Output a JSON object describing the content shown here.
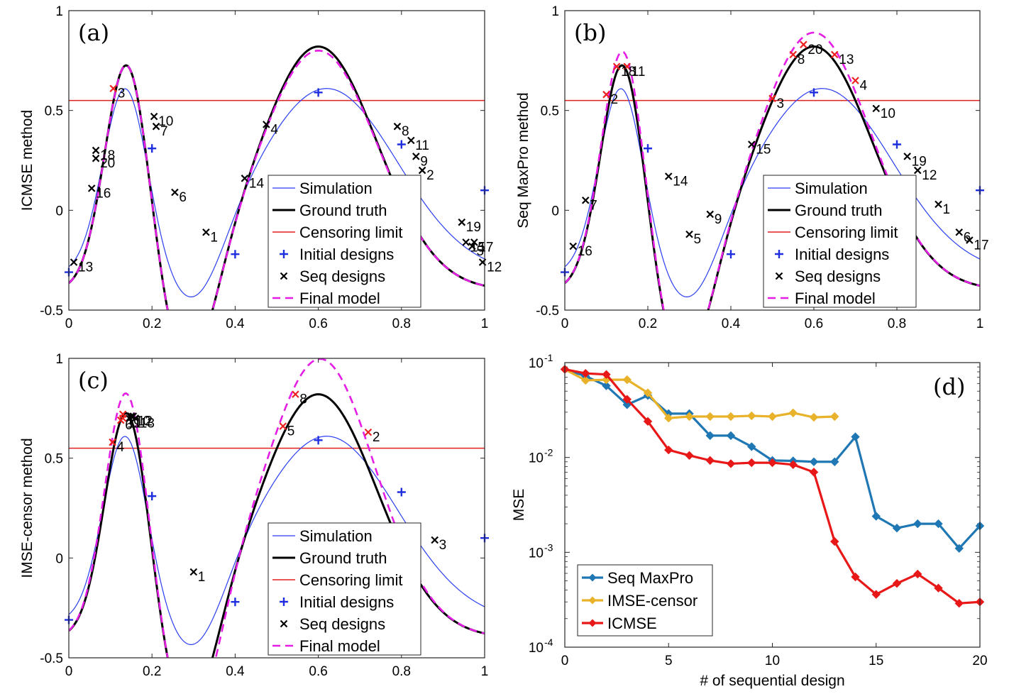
{
  "colors": {
    "simulation": "#2b3ff0",
    "ground_truth": "#000000",
    "censor": "#e01f1f",
    "initial": "#1f2fe0",
    "seq": "#000000",
    "seq_censored": "#ee2020",
    "final_model": "#e51de5",
    "seq_maxpro": "#1f77b4",
    "imse_censor": "#e8b22a",
    "icmse": "#e81818"
  },
  "chart_data": [
    {
      "type": "line",
      "panel_label": "(a)",
      "ylabel": "ICMSE method",
      "xlim": [
        0,
        1
      ],
      "ylim": [
        -0.5,
        1
      ],
      "xticks": [
        "0",
        "0.2",
        "0.4",
        "0.6",
        "0.8",
        "1"
      ],
      "yticks": [
        "-0.5",
        "0",
        "0.5",
        "1"
      ],
      "censoring_limit": 0.55,
      "legend": {
        "position": "bottom-right",
        "entries": [
          "Simulation",
          "Ground truth",
          "Censoring limit",
          "Initial designs",
          "Seq designs",
          "Final model"
        ]
      },
      "initial_designs": [
        [
          0,
          -0.31
        ],
        [
          0.2,
          0.31
        ],
        [
          0.4,
          -0.22
        ],
        [
          0.6,
          0.59
        ],
        [
          0.8,
          0.33
        ],
        [
          1.0,
          0.1
        ]
      ],
      "seq_designs": [
        {
          "x": 0.33,
          "y": -0.11,
          "label": "1",
          "censored": false
        },
        {
          "x": 0.85,
          "y": 0.2,
          "label": "2",
          "censored": false
        },
        {
          "x": 0.107,
          "y": 0.61,
          "label": "3",
          "censored": true
        },
        {
          "x": 0.475,
          "y": 0.43,
          "label": "4",
          "censored": false
        },
        {
          "x": 0.97,
          "y": -0.18,
          "label": "5",
          "censored": false
        },
        {
          "x": 0.255,
          "y": 0.09,
          "label": "6",
          "censored": false
        },
        {
          "x": 0.21,
          "y": 0.42,
          "label": "7",
          "censored": false
        },
        {
          "x": 0.79,
          "y": 0.42,
          "label": "8",
          "censored": false
        },
        {
          "x": 0.835,
          "y": 0.27,
          "label": "9",
          "censored": false
        },
        {
          "x": 0.205,
          "y": 0.47,
          "label": "10",
          "censored": false
        },
        {
          "x": 0.823,
          "y": 0.35,
          "label": "11",
          "censored": false
        },
        {
          "x": 0.995,
          "y": -0.26,
          "label": "12",
          "censored": false
        },
        {
          "x": 0.012,
          "y": -0.26,
          "label": "13",
          "censored": false
        },
        {
          "x": 0.423,
          "y": 0.16,
          "label": "14",
          "censored": false
        },
        {
          "x": 0.955,
          "y": -0.16,
          "label": "15",
          "censored": false
        },
        {
          "x": 0.055,
          "y": 0.11,
          "label": "16",
          "censored": false
        },
        {
          "x": 0.975,
          "y": -0.16,
          "label": "17",
          "censored": false
        },
        {
          "x": 0.065,
          "y": 0.3,
          "label": "18",
          "censored": false
        },
        {
          "x": 0.945,
          "y": -0.06,
          "label": "19",
          "censored": false
        },
        {
          "x": 0.065,
          "y": 0.26,
          "label": "20",
          "censored": false
        }
      ],
      "final_model_mod": {
        "p1x": 0.14,
        "d1": 0.0,
        "p2x": 0.6,
        "d2": -0.02,
        "vx": 0.33,
        "dv": 0.0
      }
    },
    {
      "type": "line",
      "panel_label": "(b)",
      "ylabel": "Seq MaxPro method",
      "xlim": [
        0,
        1
      ],
      "ylim": [
        -0.5,
        1
      ],
      "xticks": [
        "0",
        "0.2",
        "0.4",
        "0.6",
        "0.8",
        "1"
      ],
      "yticks": [
        "-0.5",
        "0",
        "0.5",
        "1"
      ],
      "censoring_limit": 0.55,
      "legend": {
        "position": "bottom-right",
        "entries": [
          "Simulation",
          "Ground truth",
          "Censoring limit",
          "Initial designs",
          "Seq designs",
          "Final model"
        ]
      },
      "initial_designs": [
        [
          0,
          -0.31
        ],
        [
          0.2,
          0.31
        ],
        [
          0.4,
          -0.22
        ],
        [
          0.6,
          0.59
        ],
        [
          0.8,
          0.33
        ],
        [
          1.0,
          0.1
        ]
      ],
      "seq_designs": [
        {
          "x": 0.9,
          "y": 0.03,
          "label": "1",
          "censored": false
        },
        {
          "x": 0.1,
          "y": 0.58,
          "label": "2",
          "censored": true
        },
        {
          "x": 0.5,
          "y": 0.56,
          "label": "3",
          "censored": true
        },
        {
          "x": 0.7,
          "y": 0.65,
          "label": "4",
          "censored": true
        },
        {
          "x": 0.3,
          "y": -0.12,
          "label": "5",
          "censored": false
        },
        {
          "x": 0.95,
          "y": -0.11,
          "label": "6",
          "censored": false
        },
        {
          "x": 0.05,
          "y": 0.05,
          "label": "7",
          "censored": false
        },
        {
          "x": 0.55,
          "y": 0.78,
          "label": "8",
          "censored": true
        },
        {
          "x": 0.35,
          "y": -0.02,
          "label": "9",
          "censored": false
        },
        {
          "x": 0.75,
          "y": 0.51,
          "label": "10",
          "censored": false
        },
        {
          "x": 0.15,
          "y": 0.72,
          "label": "11",
          "censored": true
        },
        {
          "x": 0.85,
          "y": 0.2,
          "label": "12",
          "censored": false
        },
        {
          "x": 0.65,
          "y": 0.78,
          "label": "13",
          "censored": true
        },
        {
          "x": 0.25,
          "y": 0.17,
          "label": "14",
          "censored": false
        },
        {
          "x": 0.45,
          "y": 0.33,
          "label": "15",
          "censored": false
        },
        {
          "x": 0.02,
          "y": -0.18,
          "label": "16",
          "censored": false
        },
        {
          "x": 0.975,
          "y": -0.15,
          "label": "17",
          "censored": false
        },
        {
          "x": 0.125,
          "y": 0.72,
          "label": "18",
          "censored": true
        },
        {
          "x": 0.825,
          "y": 0.27,
          "label": "19",
          "censored": false
        },
        {
          "x": 0.575,
          "y": 0.83,
          "label": "20",
          "censored": true
        }
      ],
      "final_model_mod": {
        "p1x": 0.145,
        "d1": 0.07,
        "p2x": 0.6,
        "d2": 0.07,
        "vx": 0.33,
        "dv": 0.0
      }
    },
    {
      "type": "line",
      "panel_label": "(c)",
      "ylabel": "IMSE-censor method",
      "xlim": [
        0,
        1
      ],
      "ylim": [
        -0.5,
        1
      ],
      "xticks": [
        "0",
        "0.2",
        "0.4",
        "0.6",
        "0.8",
        "1"
      ],
      "yticks": [
        "-0.5",
        "0",
        "0.5",
        "1"
      ],
      "censoring_limit": 0.55,
      "legend": {
        "position": "bottom-right",
        "entries": [
          "Simulation",
          "Ground truth",
          "Censoring limit",
          "Initial designs",
          "Seq designs",
          "Final model"
        ]
      },
      "initial_designs": [
        [
          0,
          -0.31
        ],
        [
          0.2,
          0.31
        ],
        [
          0.4,
          -0.22
        ],
        [
          0.6,
          0.59
        ],
        [
          0.8,
          0.33
        ],
        [
          1.0,
          0.1
        ]
      ],
      "seq_designs": [
        {
          "x": 0.3,
          "y": -0.07,
          "label": "1",
          "censored": false
        },
        {
          "x": 0.72,
          "y": 0.63,
          "label": "2",
          "censored": true
        },
        {
          "x": 0.88,
          "y": 0.09,
          "label": "3",
          "censored": false
        },
        {
          "x": 0.105,
          "y": 0.58,
          "label": "4",
          "censored": true
        },
        {
          "x": 0.515,
          "y": 0.66,
          "label": "5",
          "censored": true
        },
        {
          "x": 0.125,
          "y": 0.69,
          "label": "6",
          "censored": true
        },
        {
          "x": 0.13,
          "y": 0.72,
          "label": "7",
          "censored": true
        },
        {
          "x": 0.545,
          "y": 0.82,
          "label": "8",
          "censored": true
        },
        {
          "x": 0.145,
          "y": 0.7,
          "label": "9",
          "censored": false
        },
        {
          "x": 0.15,
          "y": 0.71,
          "label": "10",
          "censored": false
        },
        {
          "x": 0.13,
          "y": 0.7,
          "label": "11",
          "censored": true
        },
        {
          "x": 0.155,
          "y": 0.71,
          "label": "12",
          "censored": false
        },
        {
          "x": 0.16,
          "y": 0.7,
          "label": "13",
          "censored": false
        }
      ],
      "final_model_mod": {
        "p1x": 0.13,
        "d1": 0.1,
        "p2x": 0.62,
        "d2": 0.18,
        "vx": 0.34,
        "dv": -0.07
      }
    },
    {
      "type": "line",
      "panel_label": "(d)",
      "xlabel": "# of sequential design",
      "ylabel": "MSE",
      "yscale": "log",
      "xlim": [
        0,
        20
      ],
      "ylim": [
        0.0001,
        0.1
      ],
      "xticks": [
        "0",
        "5",
        "10",
        "15",
        "20"
      ],
      "yticks": [
        {
          "base": "10",
          "exp": "-4"
        },
        {
          "base": "10",
          "exp": "-3"
        },
        {
          "base": "10",
          "exp": "-2"
        },
        {
          "base": "10",
          "exp": "-1"
        }
      ],
      "legend": {
        "position": "bottom-left"
      },
      "series": [
        {
          "name": "Seq MaxPro",
          "color": "#1f77b4",
          "x": [
            0,
            1,
            2,
            3,
            4,
            5,
            6,
            7,
            8,
            9,
            10,
            11,
            12,
            13,
            14,
            15,
            16,
            17,
            18,
            19,
            20
          ],
          "values": [
            0.085,
            0.072,
            0.057,
            0.036,
            0.045,
            0.029,
            0.029,
            0.017,
            0.017,
            0.013,
            0.0093,
            0.0092,
            0.009,
            0.009,
            0.0165,
            0.0024,
            0.0018,
            0.002,
            0.002,
            0.0011,
            0.0019
          ]
        },
        {
          "name": "IMSE-censor",
          "color": "#e8b22a",
          "x": [
            0,
            1,
            2,
            3,
            4,
            5,
            6,
            7,
            8,
            9,
            10,
            11,
            12,
            13
          ],
          "values": [
            0.085,
            0.065,
            0.066,
            0.066,
            0.048,
            0.026,
            0.027,
            0.027,
            0.027,
            0.0275,
            0.027,
            0.0295,
            0.0265,
            0.027
          ]
        },
        {
          "name": "ICMSE",
          "color": "#e81818",
          "x": [
            0,
            1,
            2,
            3,
            4,
            5,
            6,
            7,
            8,
            9,
            10,
            11,
            12,
            13,
            14,
            15,
            16,
            17,
            18,
            19,
            20
          ],
          "values": [
            0.085,
            0.077,
            0.075,
            0.041,
            0.024,
            0.012,
            0.0105,
            0.0093,
            0.0086,
            0.0088,
            0.0088,
            0.0084,
            0.007,
            0.0013,
            0.00055,
            0.00036,
            0.00047,
            0.00059,
            0.00042,
            0.00029,
            0.0003
          ]
        }
      ]
    }
  ]
}
